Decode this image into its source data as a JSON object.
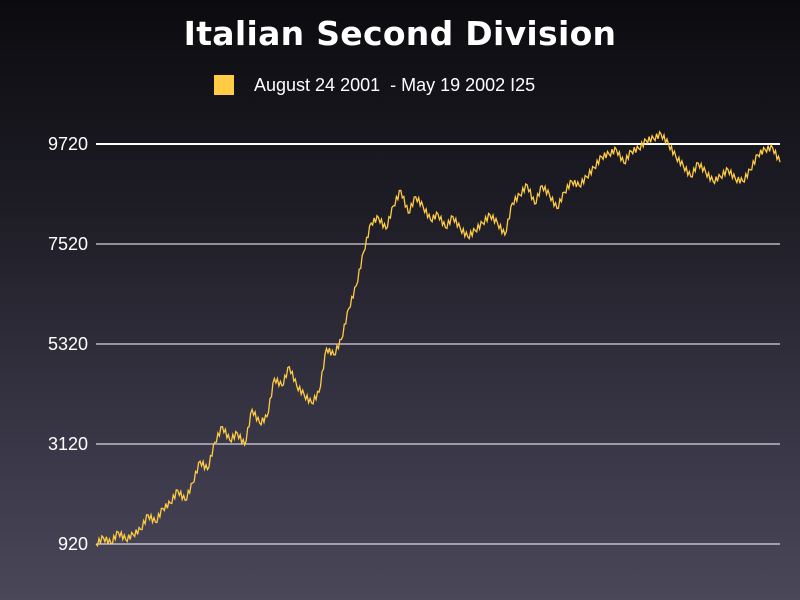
{
  "chart_data": {
    "type": "line",
    "title": "Italian Second Division",
    "legend": {
      "position": "top-center"
    },
    "series": [
      {
        "name": "August 24 2001  - May 19 2002 I25",
        "color": "#ffcc44",
        "values": [
          920,
          1060,
          940,
          1180,
          1020,
          1130,
          1240,
          1560,
          1400,
          1700,
          1820,
          2100,
          1880,
          2260,
          2740,
          2560,
          3160,
          3500,
          3200,
          3360,
          3100,
          3880,
          3580,
          3720,
          4560,
          4400,
          4820,
          4400,
          4200,
          4020,
          4260,
          5220,
          5080,
          5420,
          6100,
          6600,
          7350,
          7980,
          8100,
          7850,
          8360,
          8700,
          8200,
          8560,
          8340,
          8050,
          8180,
          7880,
          8120,
          7860,
          7680,
          7820,
          7980,
          8160,
          7980,
          7720,
          8420,
          8600,
          8820,
          8400,
          8800,
          8600,
          8300,
          8660,
          8900,
          8800,
          9000,
          9200,
          9440,
          9500,
          9600,
          9300,
          9560,
          9620,
          9800,
          9840,
          9940,
          9720,
          9440,
          9240,
          9000,
          9300,
          9100,
          8900,
          9000,
          9160,
          8950,
          8900,
          9150,
          9480,
          9600,
          9640,
          9320
        ]
      }
    ],
    "y_ticks": [
      "920",
      "3120",
      "5320",
      "7520",
      "9720"
    ],
    "ylim": [
      920,
      9720
    ],
    "colors": {
      "grid": "#ffffff",
      "series": "#ffcc44"
    }
  }
}
